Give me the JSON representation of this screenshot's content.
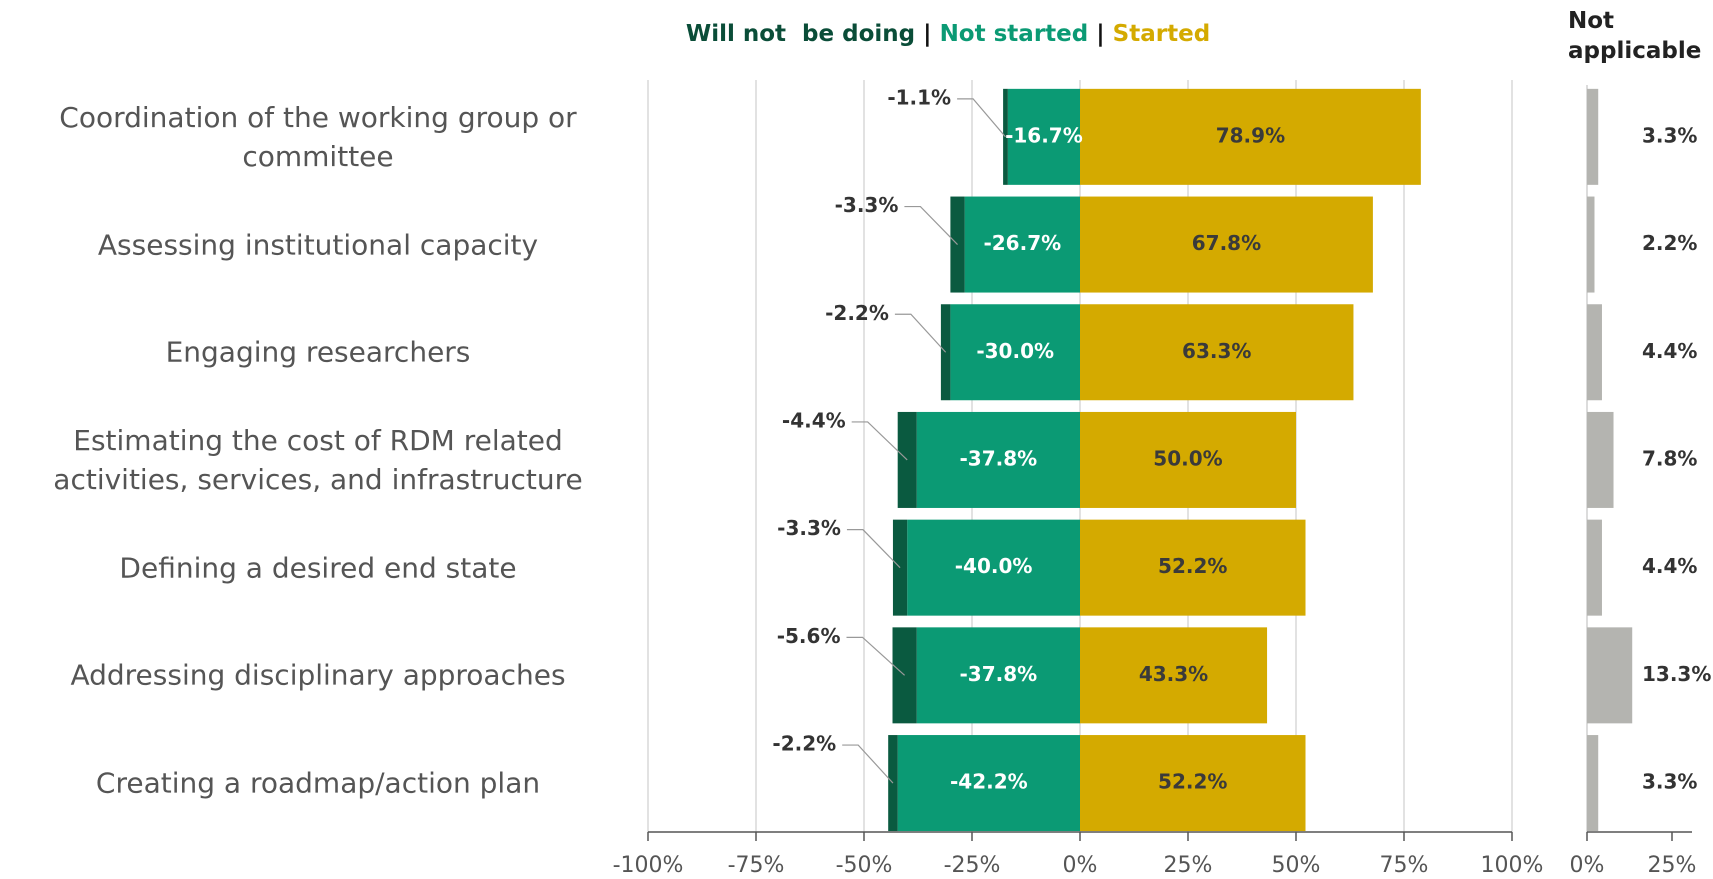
{
  "chart_data": [
    {
      "type": "bar",
      "orientation": "horizontal",
      "stacked": true,
      "legend_separator": "|",
      "categories": [
        "Coordination of the working group or committee",
        "Assessing institutional capacity",
        "Engaging researchers",
        "Estimating the cost of RDM related activities, services, and infrastructure",
        "Defining a desired end state",
        "Addressing disciplinary approaches",
        "Creating a roadmap/action plan"
      ],
      "series": [
        {
          "name": "Not started",
          "color": "#0b9a74",
          "label_color": "#ffffff",
          "values": [
            -16.7,
            -26.7,
            -30.0,
            -37.8,
            -40.0,
            -37.8,
            -42.2
          ],
          "value_labels": [
            "-16.7%",
            "-26.7%",
            "-30.0%",
            "-37.8%",
            "-40.0%",
            "-37.8%",
            "-42.2%"
          ]
        },
        {
          "name": "Will not  be doing",
          "color": "#0a5a40",
          "label_color": "#333333",
          "values": [
            -1.1,
            -3.3,
            -2.2,
            -4.4,
            -3.3,
            -5.6,
            -2.2
          ],
          "value_labels": [
            "-1.1%",
            "-3.3%",
            "-2.2%",
            "-4.4%",
            "-3.3%",
            "-5.6%",
            "-2.2%"
          ]
        },
        {
          "name": "Started",
          "color": "#d4aa00",
          "label_color": "#3a3a3a",
          "values": [
            78.9,
            67.8,
            63.3,
            50.0,
            52.2,
            43.3,
            52.2
          ],
          "value_labels": [
            "78.9%",
            "67.8%",
            "63.3%",
            "50.0%",
            "52.2%",
            "43.3%",
            "52.2%"
          ]
        }
      ],
      "legend_order": [
        1,
        0,
        2
      ],
      "legend_colors": [
        "#0a4d38",
        "#0b9a74",
        "#d4aa00"
      ],
      "xlim": [
        -100,
        100
      ],
      "xticks": [
        {
          "value": -100,
          "label": "-100%"
        },
        {
          "value": -75,
          "label": "-75%"
        },
        {
          "value": -50,
          "label": "-50%"
        },
        {
          "value": -25,
          "label": "-25%"
        },
        {
          "value": 0,
          "label": "0%"
        },
        {
          "value": 25,
          "label": "25%"
        },
        {
          "value": 50,
          "label": "50%"
        },
        {
          "value": 75,
          "label": "75%"
        },
        {
          "value": 100,
          "label": "100%"
        }
      ],
      "grid": true
    },
    {
      "type": "bar",
      "orientation": "horizontal",
      "title": "Not applicable",
      "color": "#b4b4b0",
      "values": [
        3.3,
        2.2,
        4.4,
        7.8,
        4.4,
        13.3,
        3.3
      ],
      "value_labels": [
        "3.3%",
        "2.2%",
        "4.4%",
        "7.8%",
        "4.4%",
        "13.3%",
        "3.3%"
      ],
      "xlim": [
        0,
        25
      ],
      "xticks": [
        {
          "value": 0,
          "label": "0%"
        },
        {
          "value": 25,
          "label": "25%"
        }
      ]
    }
  ]
}
